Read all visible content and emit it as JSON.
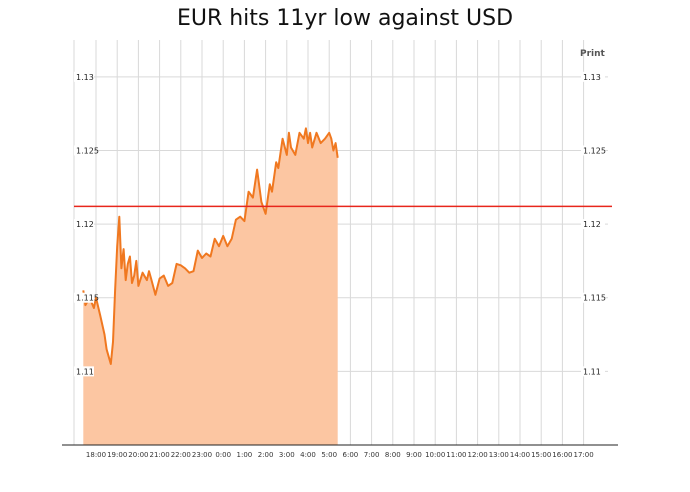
{
  "chart_data": {
    "type": "area",
    "title": "EUR hits 11yr low against USD",
    "print_label": "Print",
    "x_categories": [
      "18:00",
      "19:00",
      "20:00",
      "21:00",
      "22:00",
      "23:00",
      "0:00",
      "1:00",
      "2:00",
      "3:00",
      "4:00",
      "5:00",
      "6:00",
      "7:00",
      "8:00",
      "9:00",
      "10:00",
      "11:00",
      "12:00",
      "13:00",
      "14:00",
      "15:00",
      "16:00",
      "17:00"
    ],
    "y_ticks": [
      "1.11",
      "1.115",
      "1.12",
      "1.125",
      "1.13"
    ],
    "ylim": [
      1.105,
      1.1325
    ],
    "reference_line": 1.1212,
    "colors": {
      "line": "#f07820",
      "fill": "#fcc6a2",
      "reference": "#e8261c",
      "grid": "#d9d9d9"
    },
    "series": [
      {
        "x": [
          17.4,
          17.5,
          17.7,
          17.9,
          18.0,
          18.2,
          18.4,
          18.5,
          18.7,
          18.8,
          18.9,
          19.0,
          19.1,
          19.2,
          19.3,
          19.4,
          19.5,
          19.6,
          19.7,
          19.8,
          19.9,
          20.0,
          20.2,
          20.4,
          20.5,
          20.6,
          20.8,
          21.0,
          21.2,
          21.4,
          21.6,
          21.8,
          22.0,
          22.2,
          22.4,
          22.6,
          22.8,
          23.0,
          23.2,
          23.4,
          23.6,
          23.8,
          24.0,
          24.2,
          24.4,
          24.6,
          24.8,
          25.0,
          25.2,
          25.4,
          25.6,
          25.8,
          26.0,
          26.2,
          26.3,
          26.4,
          26.5,
          26.6,
          26.8,
          27.0,
          27.1,
          27.2,
          27.4,
          27.6,
          27.8,
          27.9,
          28.0,
          28.1,
          28.2,
          28.4,
          28.6,
          28.8,
          29.0,
          29.1,
          29.2,
          29.3,
          29.4
        ],
        "y": [
          1.1155,
          1.1145,
          1.115,
          1.1143,
          1.115,
          1.1138,
          1.1125,
          1.1115,
          1.1105,
          1.112,
          1.1155,
          1.1185,
          1.1205,
          1.117,
          1.1183,
          1.1162,
          1.1173,
          1.1178,
          1.116,
          1.1165,
          1.1175,
          1.1158,
          1.1167,
          1.1162,
          1.1168,
          1.1163,
          1.1152,
          1.1163,
          1.1165,
          1.1158,
          1.116,
          1.1173,
          1.1172,
          1.117,
          1.1167,
          1.1168,
          1.1182,
          1.1177,
          1.118,
          1.1178,
          1.119,
          1.1185,
          1.1192,
          1.1185,
          1.119,
          1.1203,
          1.1205,
          1.1202,
          1.1222,
          1.1218,
          1.1237,
          1.1215,
          1.1207,
          1.1227,
          1.1222,
          1.1232,
          1.1242,
          1.1238,
          1.1258,
          1.1247,
          1.1262,
          1.1252,
          1.1247,
          1.1262,
          1.1258,
          1.1265,
          1.1255,
          1.1262,
          1.1252,
          1.1262,
          1.1255,
          1.1258,
          1.1262,
          1.1258,
          1.125,
          1.1255,
          1.1245
        ]
      }
    ]
  }
}
